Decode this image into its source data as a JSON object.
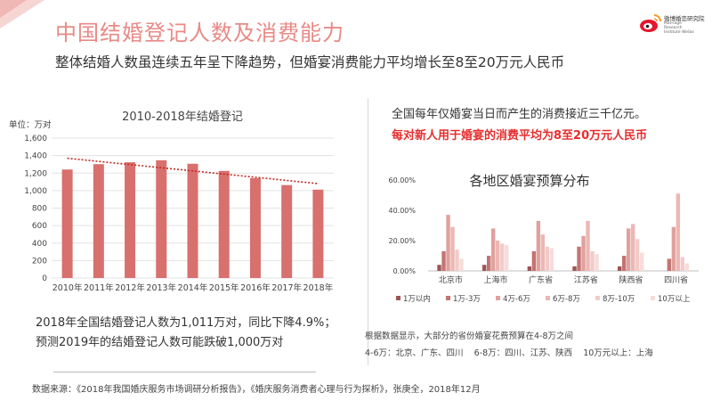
{
  "header": {
    "title": "中国结婚登记人数及消费能力",
    "subtitle": "整体结婚人数虽连续五年呈下降趋势，但婚宴消费能力平均增长至8至20万元人民币",
    "logo_name": "微博婚恋研究院",
    "logo_en": "Marriage Research Institute Weibo"
  },
  "colors": {
    "accent": "#e88a86",
    "bar": "#d8706e",
    "trend": "#c0281e",
    "highlight": "#e52d2d",
    "series": [
      "#9e5553",
      "#c47472",
      "#e0a19d",
      "#ecb7b3",
      "#f2cbc8",
      "#f7dcda"
    ]
  },
  "chart_data": [
    {
      "type": "bar",
      "title": "2010-2018年结婚登记",
      "ylabel": "单位：万对",
      "xlabel": "",
      "categories": [
        "2010年",
        "2011年",
        "2012年",
        "2013年",
        "2014年",
        "2015年",
        "2016年",
        "2017年",
        "2018年"
      ],
      "values": [
        1241,
        1302,
        1324,
        1347,
        1307,
        1225,
        1142,
        1063,
        1011
      ],
      "ylim": [
        0,
        1600
      ],
      "yticks": [
        "0",
        "200",
        "400",
        "600",
        "800",
        "1,000",
        "1,200",
        "1,400",
        "1,600"
      ],
      "trendline": {
        "start": 1370,
        "end": 1080
      },
      "grid": true
    },
    {
      "type": "bar",
      "title": "各地区婚宴预算分布",
      "categories": [
        "北京市",
        "上海市",
        "广东省",
        "江苏省",
        "陕西省",
        "四川省"
      ],
      "ylim": [
        0,
        0.6
      ],
      "yticks": [
        "0.00%",
        "20.00%",
        "40.00%",
        "60.00%"
      ],
      "legend_position": "bottom",
      "series": [
        {
          "name": "1万以内",
          "values": [
            0.04,
            0.04,
            0.03,
            0.03,
            0.03,
            0.0
          ]
        },
        {
          "name": "1万-3万",
          "values": [
            0.13,
            0.1,
            0.13,
            0.16,
            0.1,
            0.08
          ]
        },
        {
          "name": "4万-6万",
          "values": [
            0.37,
            0.28,
            0.33,
            0.23,
            0.28,
            0.29
          ]
        },
        {
          "name": "6万-8万",
          "values": [
            0.29,
            0.2,
            0.24,
            0.33,
            0.31,
            0.51
          ]
        },
        {
          "name": "8万-10万",
          "values": [
            0.14,
            0.18,
            0.16,
            0.13,
            0.21,
            0.09
          ]
        },
        {
          "name": "10万以上",
          "values": [
            0.08,
            0.17,
            0.15,
            0.11,
            0.12,
            0.05
          ]
        }
      ]
    }
  ],
  "notes": {
    "left_line1": "2018年全国结婚登记人数为1,011万对，同比下降4.9%；",
    "left_line2": "预测2019年的结婚登记人数可能跌破1,000万对",
    "right_line1": "全国每年仅婚宴当日而产生的消费接近三千亿元。",
    "right_line2": "每对新人用于婚宴的消费平均为8至20万元人民币",
    "right_note1": "根据数据显示，大部分的省份婚宴花费预算在4-8万之间",
    "right_note2": "4-6万：北京、广东、四川    6-8万：四川、江苏、陕西    10万元以上：上海"
  },
  "source": "数据来源：《2018年我国婚庆服务市场调研分析报告》，《婚庆服务消费者心理与行为探析》，张庚全，2018年12月"
}
